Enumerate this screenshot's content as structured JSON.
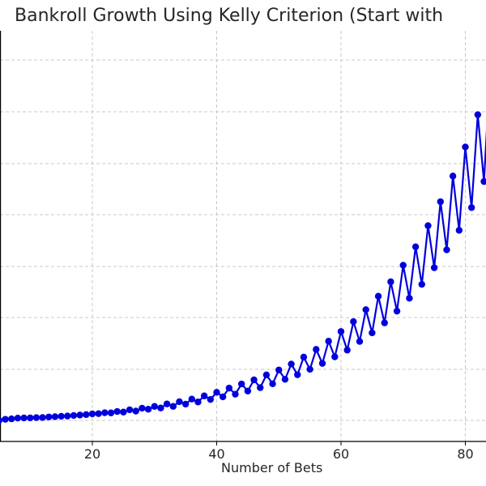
{
  "chart_data": {
    "type": "line",
    "title": "Bankroll Growth Using Kelly Criterion (Start with",
    "xlabel": "Number of Bets",
    "ylabel": "",
    "x_ticks": [
      20,
      40,
      60,
      80
    ],
    "xlim": [
      5,
      84
    ],
    "grid": true,
    "legend": "none",
    "series_color": "#0000dd",
    "grid_color": "#c8c8c8",
    "series": [
      {
        "x": [
          5,
          6,
          7,
          8,
          9,
          10,
          11,
          12,
          13,
          14,
          15,
          16,
          17,
          18,
          19,
          20,
          21,
          22,
          23,
          24,
          25,
          26,
          27,
          28,
          29,
          30,
          31,
          32,
          33,
          34,
          35,
          36,
          37,
          38,
          39,
          40,
          41,
          42,
          43,
          44,
          45,
          46,
          47,
          48,
          49,
          50,
          51,
          52,
          53,
          54,
          55,
          56,
          57,
          58,
          59,
          60,
          61,
          62,
          63,
          64,
          65,
          66,
          67,
          68,
          69,
          70,
          71,
          72,
          73,
          74,
          75,
          76,
          77,
          78,
          79,
          80,
          81,
          82,
          83,
          84
        ],
        "y": [
          0.0,
          0.053,
          0.075,
          0.11,
          0.118,
          0.122,
          0.134,
          0.139,
          0.166,
          0.18,
          0.2,
          0.212,
          0.238,
          0.261,
          0.281,
          0.319,
          0.328,
          0.371,
          0.364,
          0.432,
          0.403,
          0.516,
          0.453,
          0.593,
          0.542,
          0.679,
          0.602,
          0.801,
          0.68,
          0.908,
          0.791,
          1.036,
          0.896,
          1.191,
          1.018,
          1.366,
          1.146,
          1.57,
          1.273,
          1.771,
          1.426,
          1.969,
          1.59,
          2.211,
          1.778,
          2.45,
          1.996,
          2.739,
          2.219,
          3.076,
          2.482,
          3.45,
          2.771,
          3.848,
          3.09,
          4.32,
          3.415,
          4.8,
          3.837,
          5.381,
          4.254,
          6.035,
          4.74,
          6.738,
          5.31,
          7.543,
          5.937,
          8.438,
          6.612,
          9.464,
          7.42,
          10.629,
          8.289,
          11.876,
          9.238,
          13.289,
          10.342,
          14.857,
          11.61,
          17.07
        ]
      }
    ]
  }
}
